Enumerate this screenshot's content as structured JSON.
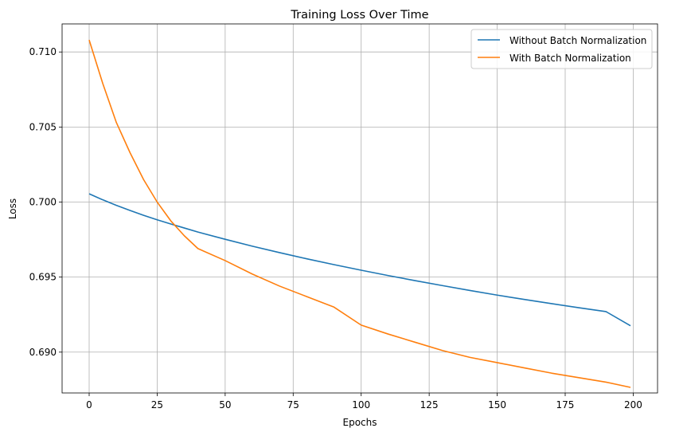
{
  "chart_data": {
    "type": "line",
    "title": "Training Loss Over Time",
    "xlabel": "Epochs",
    "ylabel": "Loss",
    "xlim": [
      -9.95,
      208.95
    ],
    "ylim": [
      0.68728,
      0.71187
    ],
    "xticks": [
      0,
      25,
      50,
      75,
      100,
      125,
      150,
      175,
      200
    ],
    "xtick_labels": [
      "0",
      "25",
      "50",
      "75",
      "100",
      "125",
      "150",
      "175",
      "200"
    ],
    "yticks": [
      0.69,
      0.695,
      0.7,
      0.705,
      0.71
    ],
    "ytick_labels": [
      "0.690",
      "0.695",
      "0.700",
      "0.705",
      "0.710"
    ],
    "grid": true,
    "legend_position": "top-right",
    "x": [
      0,
      5,
      10,
      15,
      20,
      25,
      30,
      35,
      40,
      50,
      60,
      70,
      80,
      90,
      100,
      110,
      120,
      130,
      140,
      150,
      160,
      170,
      180,
      190,
      199
    ],
    "series": [
      {
        "name": "Without Batch Normalization",
        "color": "#1f77b4",
        "values": [
          0.70055,
          0.70015,
          0.69978,
          0.69944,
          0.69912,
          0.69882,
          0.69854,
          0.69827,
          0.698,
          0.69752,
          0.69706,
          0.69663,
          0.69622,
          0.69583,
          0.69546,
          0.6951,
          0.69476,
          0.69443,
          0.69411,
          0.6938,
          0.69351,
          0.69323,
          0.69296,
          0.6927,
          0.69176
        ]
      },
      {
        "name": "With Batch Normalization",
        "color": "#ff7f0e",
        "values": [
          0.7108,
          0.7079,
          0.7053,
          0.7033,
          0.7015,
          0.7,
          0.69875,
          0.69775,
          0.6969,
          0.6961,
          0.6952,
          0.6944,
          0.6937,
          0.693,
          0.6918,
          0.6912,
          0.69065,
          0.6901,
          0.68965,
          0.6893,
          0.68895,
          0.6886,
          0.6883,
          0.688,
          0.68765
        ]
      }
    ]
  }
}
